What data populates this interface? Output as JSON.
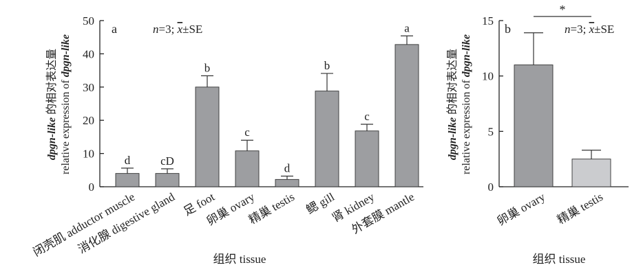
{
  "chart_data": [
    {
      "type": "bar",
      "panel_label": "a",
      "annotation": {
        "n_text": "n",
        "n_rest": "=3; ",
        "mean_symbol": "x",
        "se_text": "±SE"
      },
      "ylabel_line1_italic": "dpgn-like",
      "ylabel_line1_rest": " 的相对表达量",
      "ylabel_line2_plain": "relative expression of ",
      "ylabel_line2_italic": "dpgn-like",
      "xlabel": "组织 tissue",
      "ylim": [
        0,
        50
      ],
      "yticks": [
        "0",
        "10",
        "20",
        "30",
        "40",
        "50"
      ],
      "categories": [
        "闭壳肌 adductor muscle",
        "消化腺 digestive gland",
        "足 foot",
        "卵巢 ovary",
        "精巢 testis",
        "鳃 gill",
        "肾 kidney",
        "外套膜 mantle"
      ],
      "values": [
        4.0,
        4.0,
        30.0,
        10.8,
        2.2,
        28.8,
        16.8,
        42.8
      ],
      "errors": [
        1.6,
        1.4,
        3.4,
        3.2,
        1.0,
        5.3,
        2.0,
        2.6
      ],
      "significance_labels": [
        "d",
        "cD",
        "b",
        "c",
        "d",
        "b",
        "c",
        "a"
      ],
      "colors": {
        "bar": "#9d9ea1"
      }
    },
    {
      "type": "bar",
      "panel_label": "b",
      "annotation": {
        "n_text": "n",
        "n_rest": "=3; ",
        "mean_symbol": "x",
        "se_text": "±SE"
      },
      "ylabel_line1_italic": "dpgn-like",
      "ylabel_line1_rest": " 的相对表达量",
      "ylabel_line2_plain": "relative expression of ",
      "ylabel_line2_italic": "dpgn-like",
      "xlabel": "组织 tissue",
      "ylim": [
        0,
        15
      ],
      "yticks": [
        "0",
        "5",
        "10",
        "15"
      ],
      "categories": [
        "卵巢 ovary",
        "精巢 testis"
      ],
      "values": [
        11.0,
        2.5
      ],
      "errors": [
        2.9,
        0.8
      ],
      "significance": "*",
      "colors": {
        "bars": [
          "#9d9ea1",
          "#cbcccf"
        ]
      }
    }
  ]
}
